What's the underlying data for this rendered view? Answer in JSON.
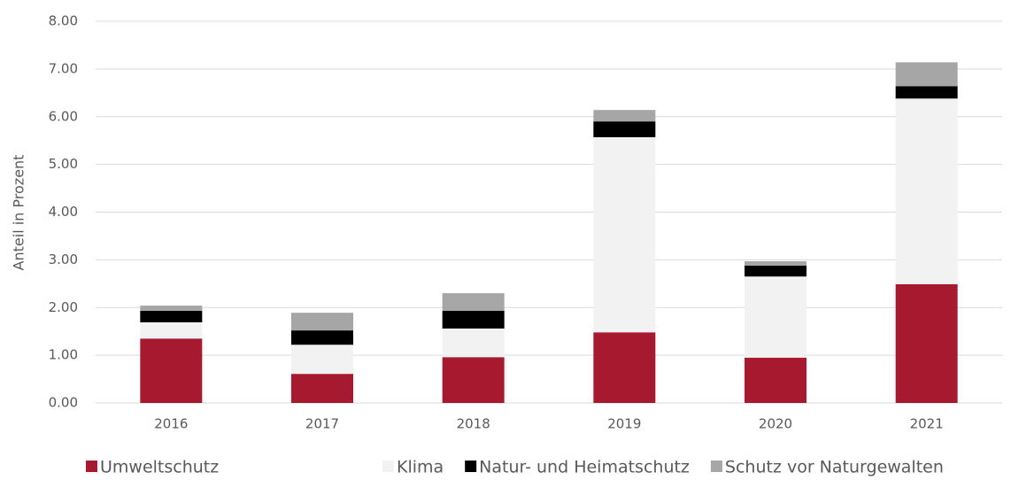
{
  "chart_data": {
    "type": "stacked_bar",
    "y_axis_label": "Anteil in Prozent",
    "categories": [
      "2016",
      "2017",
      "2018",
      "2019",
      "2020",
      "2021"
    ],
    "series": [
      {
        "name": "Umweltschutz",
        "color": "#a6192e",
        "values": [
          1.35,
          0.61,
          0.96,
          1.48,
          0.95,
          2.49
        ]
      },
      {
        "name": "Klima",
        "color": "#f2f2f2",
        "values": [
          0.34,
          0.61,
          0.6,
          4.09,
          1.7,
          3.89
        ]
      },
      {
        "name": "Natur- und Heimatschutz",
        "color": "#000000",
        "values": [
          0.24,
          0.3,
          0.37,
          0.33,
          0.23,
          0.26
        ]
      },
      {
        "name": "Schutz vor Naturgewalten",
        "color": "#a6a6a6",
        "values": [
          0.11,
          0.37,
          0.37,
          0.24,
          0.09,
          0.5
        ]
      }
    ],
    "ylim": [
      0,
      8
    ],
    "yticks": [
      {
        "value": 0,
        "label": "0.00"
      },
      {
        "value": 1,
        "label": "1.00"
      },
      {
        "value": 2,
        "label": "2.00"
      },
      {
        "value": 3,
        "label": "3.00"
      },
      {
        "value": 4,
        "label": "4.00"
      },
      {
        "value": 5,
        "label": "5.00"
      },
      {
        "value": 6,
        "label": "6.00"
      },
      {
        "value": 7,
        "label": "7.00"
      },
      {
        "value": 8,
        "label": "8.00"
      }
    ],
    "grid": true,
    "legend": "bottom"
  }
}
